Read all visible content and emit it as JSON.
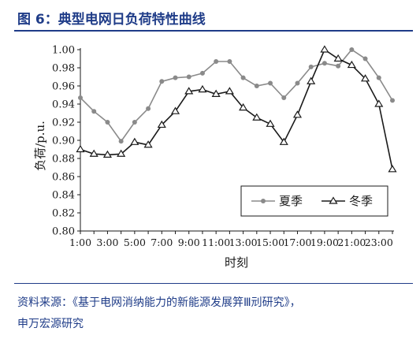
{
  "header": {
    "title": "图 6：典型电网日负荷特性曲线"
  },
  "chart_data": {
    "type": "line",
    "xlabel": "时刻",
    "ylabel": "负荷/p.u.",
    "x": [
      "1:00",
      "2:00",
      "3:00",
      "4:00",
      "5:00",
      "6:00",
      "7:00",
      "8:00",
      "9:00",
      "10:00",
      "11:00",
      "12:00",
      "13:00",
      "14:00",
      "15:00",
      "16:00",
      "17:00",
      "18:00",
      "19:00",
      "20:00",
      "21:00",
      "22:00",
      "23:00",
      "24:00"
    ],
    "x_tick_labels": [
      "1:00",
      "3:00",
      "5:00",
      "7:00",
      "9:00",
      "11:00",
      "13:00",
      "15:00",
      "17:00",
      "19:00",
      "21:00",
      "23:00"
    ],
    "y_tick_labels": [
      "0.80",
      "0.82",
      "0.84",
      "0.86",
      "0.88",
      "0.90",
      "0.92",
      "0.94",
      "0.96",
      "0.98",
      "1.00"
    ],
    "ylim": [
      0.8,
      1.0
    ],
    "grid": false,
    "legend_position": "bottom-right",
    "series": [
      {
        "name": "夏季",
        "color": "#8a8a8a",
        "marker": "circle",
        "values": [
          0.947,
          0.932,
          0.92,
          0.899,
          0.92,
          0.935,
          0.965,
          0.969,
          0.97,
          0.974,
          0.987,
          0.987,
          0.969,
          0.96,
          0.963,
          0.947,
          0.963,
          0.981,
          0.985,
          0.982,
          1.0,
          0.99,
          0.969,
          0.944
        ]
      },
      {
        "name": "冬季",
        "color": "#1a1a1a",
        "marker": "triangle",
        "values": [
          0.89,
          0.885,
          0.884,
          0.885,
          0.898,
          0.895,
          0.917,
          0.932,
          0.954,
          0.956,
          0.951,
          0.954,
          0.936,
          0.925,
          0.918,
          0.898,
          0.928,
          0.965,
          1.0,
          0.99,
          0.983,
          0.968,
          0.94,
          0.868
        ]
      }
    ]
  },
  "footer": {
    "source_line1": "资料来源：《基于电网消纳能力的新能源发展笄Ⅲ刓研究》，",
    "source_line2": "申万宏源研究"
  }
}
